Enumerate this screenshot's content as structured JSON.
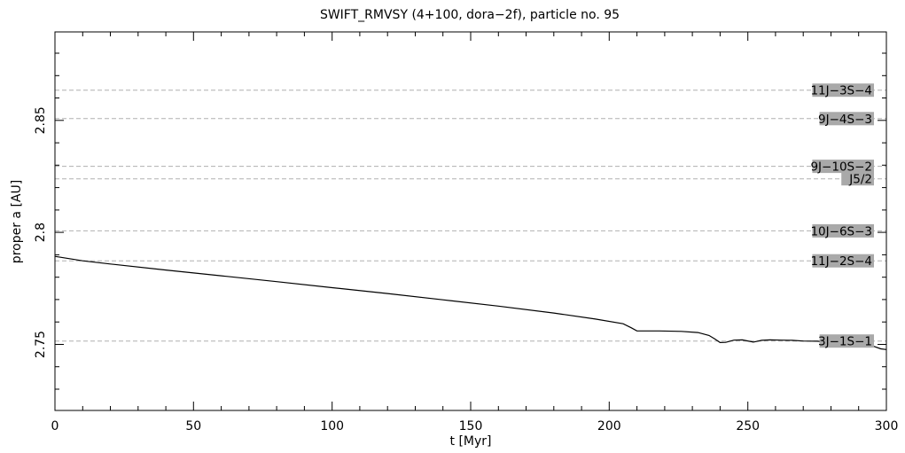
{
  "chart_data": {
    "type": "line",
    "title": "SWIFT_RMVSY (4+100, dora−2f), particle no. 95",
    "xlabel": "t [Myr]",
    "ylabel": "proper a [AU]",
    "xlim": [
      0,
      300
    ],
    "ylim": [
      2.7205,
      2.8895
    ],
    "xticks": [
      0,
      50,
      100,
      150,
      200,
      250,
      300
    ],
    "xtick_labels": [
      "0",
      "50",
      "100",
      "150",
      "200",
      "250",
      "300"
    ],
    "yticks": [
      2.75,
      2.8,
      2.85
    ],
    "ytick_labels": [
      "2.75",
      "2.8",
      "2.85"
    ],
    "grid": false,
    "series": [
      {
        "x": [
          0,
          10,
          20,
          40,
          60,
          80,
          100,
          120,
          140,
          160,
          180,
          195,
          205,
          208,
          210,
          218,
          226,
          232,
          236,
          238,
          240,
          242,
          245,
          248,
          252,
          255,
          258,
          262,
          266,
          270,
          275,
          280,
          285,
          290,
          295,
          298,
          300
        ],
        "y": [
          2.7893,
          2.7873,
          2.7859,
          2.7832,
          2.7806,
          2.778,
          2.7753,
          2.7727,
          2.7699,
          2.7671,
          2.764,
          2.7613,
          2.7592,
          2.7574,
          2.756,
          2.756,
          2.7558,
          2.7553,
          2.754,
          2.7525,
          2.7508,
          2.7509,
          2.7519,
          2.752,
          2.751,
          2.7518,
          2.752,
          2.7519,
          2.7518,
          2.7515,
          2.7514,
          2.751,
          2.7508,
          2.7506,
          2.7493,
          2.748,
          2.7477
        ]
      }
    ],
    "resonances": [
      {
        "label": "11J−3S−4",
        "a": 2.8635
      },
      {
        "label": "9J−4S−3",
        "a": 2.8508
      },
      {
        "label": "9J−10S−2",
        "a": 2.8295
      },
      {
        "label": "J5/2",
        "a": 2.8239
      },
      {
        "label": "10J−6S−3",
        "a": 2.8007
      },
      {
        "label": "11J−2S−4",
        "a": 2.7873
      },
      {
        "label": "3J−1S−1",
        "a": 2.7515
      }
    ],
    "colors": {
      "axes": "#000000",
      "curve": "#000000",
      "resonance_line": "#b0b0b0",
      "label_bg": "#a9a9a9",
      "label_text": "#000000"
    }
  }
}
